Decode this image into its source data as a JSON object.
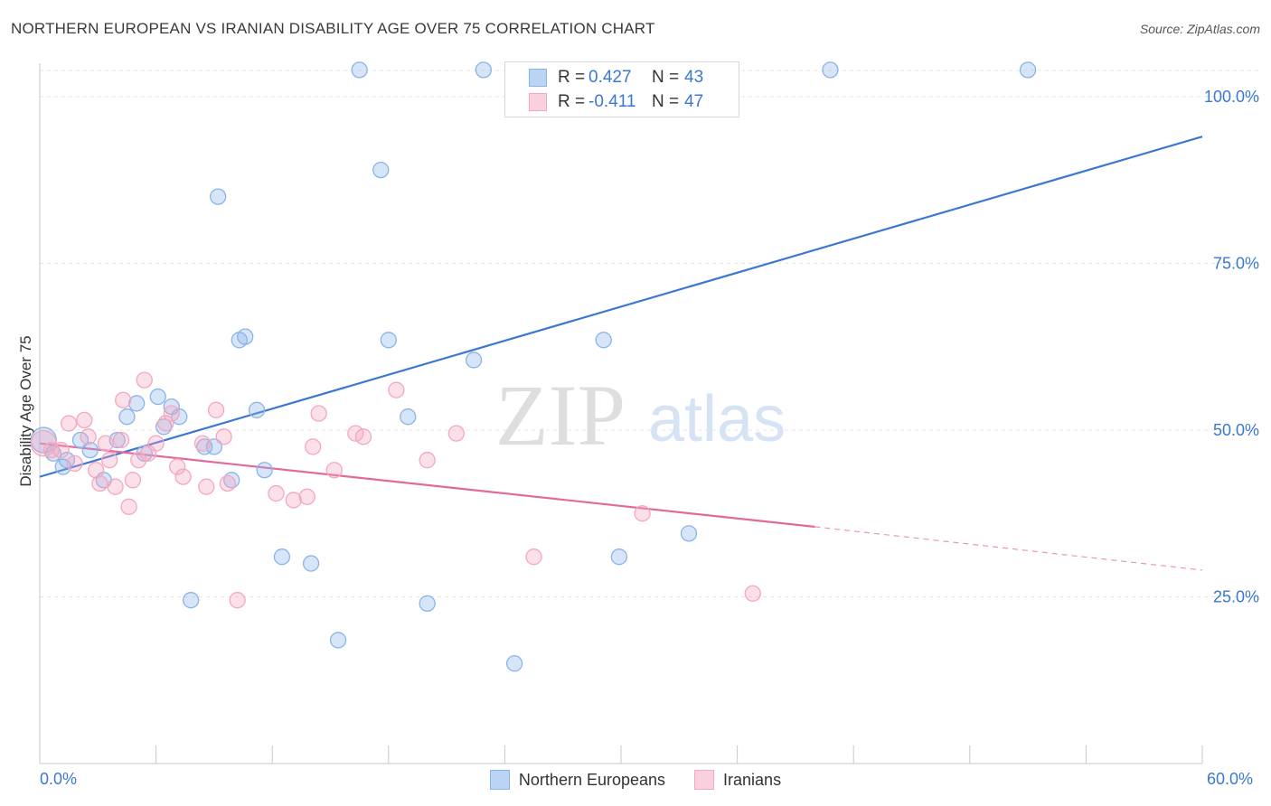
{
  "title": "NORTHERN EUROPEAN VS IRANIAN DISABILITY AGE OVER 75 CORRELATION CHART",
  "source": "Source: ZipAtlas.com",
  "watermark": {
    "zip": "ZIP",
    "atlas": "atlas"
  },
  "legend": {
    "r_label": "R =",
    "n_label": "N =",
    "rows": [
      {
        "r": "0.427",
        "n": "43"
      },
      {
        "r": "-0.411",
        "n": "47"
      }
    ]
  },
  "chart_data": {
    "type": "scatter",
    "title": "NORTHERN EUROPEAN VS IRANIAN DISABILITY AGE OVER 75 CORRELATION CHART",
    "xlabel": "",
    "ylabel": "Disability Age Over 75",
    "xlim": [
      0,
      60
    ],
    "ylim": [
      0,
      105
    ],
    "x_tick_labels": [
      "0.0%",
      "60.0%"
    ],
    "y_ticks": [
      25,
      50,
      75,
      100
    ],
    "y_tick_labels": [
      "25.0%",
      "50.0%",
      "75.0%",
      "100.0%"
    ],
    "grid": true,
    "legend_position": "top-center",
    "series": [
      {
        "name": "Northern Europeans",
        "color": "#8ab4e8",
        "line_color": "#3b78d1",
        "trend": {
          "x": [
            0,
            60
          ],
          "y": [
            43.0,
            94.0
          ]
        },
        "points": [
          [
            0.2,
            48.5
          ],
          [
            0.7,
            46.5
          ],
          [
            1.2,
            44.5
          ],
          [
            1.4,
            45.5
          ],
          [
            2.1,
            48.5
          ],
          [
            2.6,
            47.0
          ],
          [
            3.3,
            42.5
          ],
          [
            4.0,
            48.5
          ],
          [
            4.5,
            52.0
          ],
          [
            5.0,
            54.0
          ],
          [
            5.4,
            46.5
          ],
          [
            6.1,
            55.0
          ],
          [
            6.4,
            50.5
          ],
          [
            6.8,
            53.5
          ],
          [
            7.2,
            52.0
          ],
          [
            7.8,
            24.5
          ],
          [
            9.0,
            47.5
          ],
          [
            8.5,
            47.5
          ],
          [
            9.2,
            85.0
          ],
          [
            9.9,
            42.5
          ],
          [
            10.3,
            63.5
          ],
          [
            10.6,
            64.0
          ],
          [
            11.2,
            53.0
          ],
          [
            11.6,
            44.0
          ],
          [
            12.5,
            31.0
          ],
          [
            14.0,
            30.0
          ],
          [
            15.4,
            18.5
          ],
          [
            16.5,
            104.0
          ],
          [
            17.6,
            89.0
          ],
          [
            18.0,
            63.5
          ],
          [
            19.0,
            52.0
          ],
          [
            20.0,
            24.0
          ],
          [
            22.4,
            60.5
          ],
          [
            22.9,
            104.0
          ],
          [
            24.5,
            15.0
          ],
          [
            26.2,
            104.0
          ],
          [
            29.1,
            63.5
          ],
          [
            29.9,
            31.0
          ],
          [
            33.5,
            34.5
          ],
          [
            40.8,
            104.0
          ],
          [
            51.0,
            104.0
          ]
        ]
      },
      {
        "name": "Iranians",
        "color": "#f4a7bf",
        "line_color": "#e2699a",
        "trend": {
          "x": [
            0,
            40
          ],
          "y": [
            48.0,
            35.5
          ]
        },
        "trend_dashed": {
          "x": [
            40,
            60
          ],
          "y": [
            35.5,
            29.0
          ]
        },
        "points": [
          [
            0.2,
            48.0
          ],
          [
            0.6,
            47.0
          ],
          [
            1.1,
            47.0
          ],
          [
            1.5,
            51.0
          ],
          [
            1.8,
            45.0
          ],
          [
            2.3,
            51.5
          ],
          [
            2.5,
            49.0
          ],
          [
            2.9,
            44.0
          ],
          [
            3.1,
            42.0
          ],
          [
            3.4,
            48.0
          ],
          [
            3.6,
            45.5
          ],
          [
            3.9,
            41.5
          ],
          [
            4.2,
            48.5
          ],
          [
            4.3,
            54.5
          ],
          [
            4.6,
            38.5
          ],
          [
            4.8,
            42.5
          ],
          [
            5.1,
            45.5
          ],
          [
            5.4,
            57.5
          ],
          [
            5.6,
            46.5
          ],
          [
            6.0,
            48.0
          ],
          [
            6.5,
            51.0
          ],
          [
            6.8,
            52.5
          ],
          [
            7.1,
            44.5
          ],
          [
            7.4,
            43.0
          ],
          [
            8.4,
            48.0
          ],
          [
            8.6,
            41.5
          ],
          [
            9.1,
            53.0
          ],
          [
            9.5,
            49.0
          ],
          [
            9.7,
            42.0
          ],
          [
            10.2,
            24.5
          ],
          [
            12.2,
            40.5
          ],
          [
            13.1,
            39.5
          ],
          [
            13.8,
            40.0
          ],
          [
            14.1,
            47.5
          ],
          [
            14.4,
            52.5
          ],
          [
            15.2,
            44.0
          ],
          [
            16.3,
            49.5
          ],
          [
            16.7,
            49.0
          ],
          [
            18.4,
            56.0
          ],
          [
            20.0,
            45.5
          ],
          [
            21.5,
            49.5
          ],
          [
            25.5,
            31.0
          ],
          [
            31.1,
            37.5
          ],
          [
            36.8,
            25.5
          ]
        ]
      }
    ]
  }
}
